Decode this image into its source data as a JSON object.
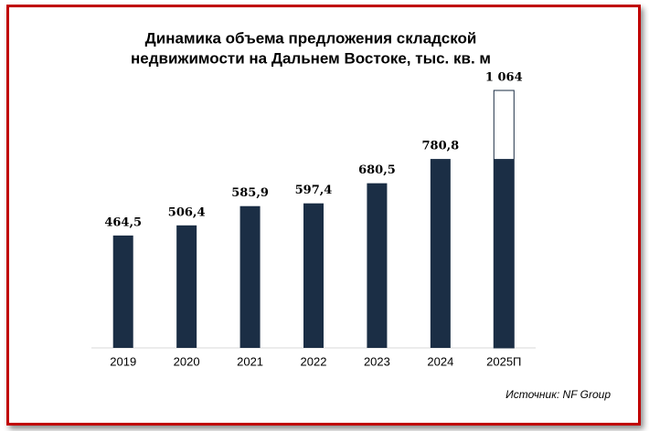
{
  "chart_data": {
    "type": "bar",
    "title": [
      "Динамика объема предложения складской",
      "недвижимости на Дальнем Востоке, тыс. кв. м"
    ],
    "categories": [
      "2019",
      "2020",
      "2021",
      "2022",
      "2023",
      "2024",
      "2025П"
    ],
    "values": [
      464.5,
      506.4,
      585.9,
      597.4,
      680.5,
      780.8,
      1064
    ],
    "value_labels": [
      "464,5",
      "506,4",
      "585,9",
      "597,4",
      "680,5",
      "780,8",
      "1 064"
    ],
    "filled_values": [
      null,
      null,
      null,
      null,
      null,
      null,
      780.8
    ],
    "color": "#1b2e45",
    "ylim": [
      0,
      1200
    ],
    "source": "Источник: NF Group"
  }
}
